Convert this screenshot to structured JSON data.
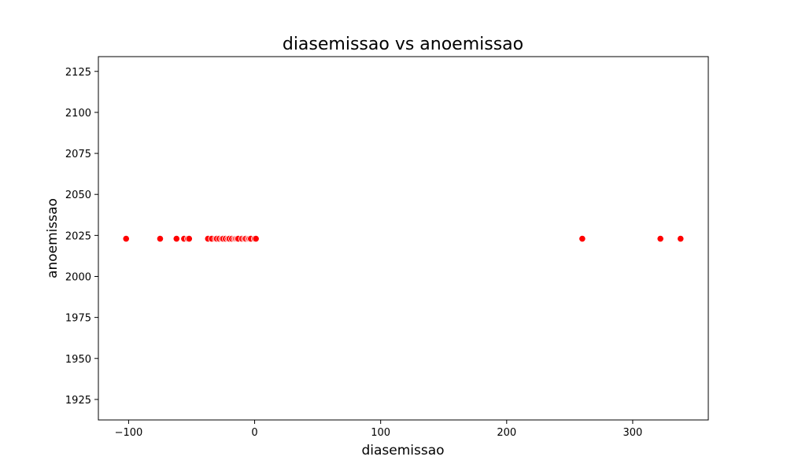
{
  "chart_data": {
    "type": "scatter",
    "title": "diasemissao vs anoemissao",
    "xlabel": "diasemissao",
    "ylabel": "anoemissao",
    "xlim": [
      -124,
      360
    ],
    "ylim": [
      1912.5,
      2134
    ],
    "xticks": [
      -100,
      0,
      100,
      200,
      300
    ],
    "xtick_labels": [
      "−100",
      "0",
      "100",
      "200",
      "300"
    ],
    "yticks": [
      1925,
      1950,
      1975,
      2000,
      2025,
      2050,
      2075,
      2100,
      2125
    ],
    "ytick_labels": [
      "1925",
      "1950",
      "1975",
      "2000",
      "2025",
      "2050",
      "2075",
      "2100",
      "2125"
    ],
    "grid": false,
    "legend": "none",
    "marker_color": "#ff0000",
    "marker_edge_color": "#ffffff",
    "points": [
      {
        "x": -102,
        "y": 2023
      },
      {
        "x": -75,
        "y": 2023
      },
      {
        "x": -62,
        "y": 2023
      },
      {
        "x": -56,
        "y": 2023
      },
      {
        "x": -53,
        "y": 2023
      },
      {
        "x": -52,
        "y": 2023
      },
      {
        "x": -37,
        "y": 2023
      },
      {
        "x": -34,
        "y": 2023
      },
      {
        "x": -31,
        "y": 2023
      },
      {
        "x": -30,
        "y": 2023
      },
      {
        "x": -28,
        "y": 2023
      },
      {
        "x": -26,
        "y": 2023
      },
      {
        "x": -25,
        "y": 2023
      },
      {
        "x": -23,
        "y": 2023
      },
      {
        "x": -21,
        "y": 2023
      },
      {
        "x": -20,
        "y": 2023
      },
      {
        "x": -18,
        "y": 2023
      },
      {
        "x": -16,
        "y": 2023
      },
      {
        "x": -15,
        "y": 2023
      },
      {
        "x": -14,
        "y": 2023
      },
      {
        "x": -13,
        "y": 2023
      },
      {
        "x": -10,
        "y": 2023
      },
      {
        "x": -8,
        "y": 2023
      },
      {
        "x": -7,
        "y": 2023
      },
      {
        "x": -5,
        "y": 2023
      },
      {
        "x": -4,
        "y": 2023
      },
      {
        "x": -3,
        "y": 2023
      },
      {
        "x": 0,
        "y": 2023
      },
      {
        "x": 1,
        "y": 2023
      },
      {
        "x": 260,
        "y": 2023
      },
      {
        "x": 322,
        "y": 2023
      },
      {
        "x": 338,
        "y": 2023
      }
    ]
  }
}
